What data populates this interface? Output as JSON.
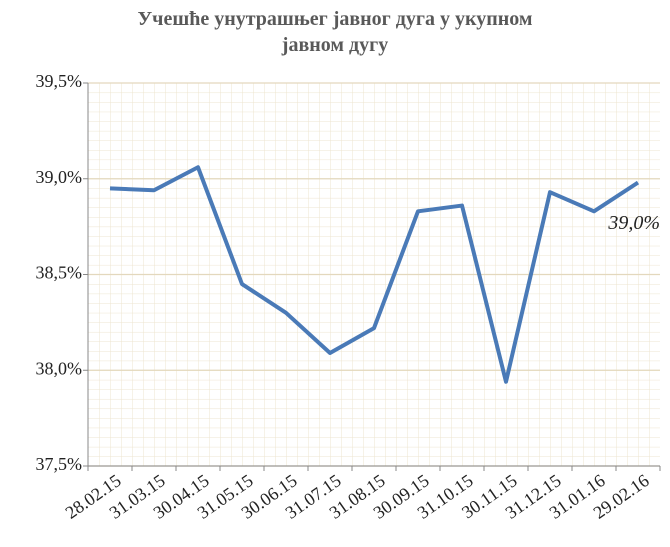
{
  "chart_data": {
    "type": "line",
    "title": "Учешће унутрашњег јавног дуга у укупном јавном дугу",
    "categories": [
      "28.02.15",
      "31.03.15",
      "30.04.15",
      "31.05.15",
      "30.06.15",
      "31.07.15",
      "31.08.15",
      "30.09.15",
      "31.10.15",
      "30.11.15",
      "31.12.15",
      "31.01.16",
      "29.02.16"
    ],
    "series": [
      {
        "color": "#4a7ab7",
        "values": [
          38.95,
          38.94,
          39.06,
          38.45,
          38.3,
          38.09,
          38.22,
          38.83,
          38.86,
          37.94,
          38.93,
          38.83,
          38.98
        ],
        "value_labels": [
          null,
          null,
          null,
          null,
          null,
          null,
          null,
          null,
          null,
          null,
          null,
          null,
          "39,0%"
        ]
      }
    ],
    "ylim": [
      37.5,
      39.5
    ],
    "yticks": [
      {
        "value": 37.5,
        "label": "37,5%"
      },
      {
        "value": 38.0,
        "label": "38,0%"
      },
      {
        "value": 38.5,
        "label": "38,5%"
      },
      {
        "value": 39.0,
        "label": "39,0%"
      },
      {
        "value": 39.5,
        "label": "39,5%"
      }
    ],
    "grid": true
  }
}
